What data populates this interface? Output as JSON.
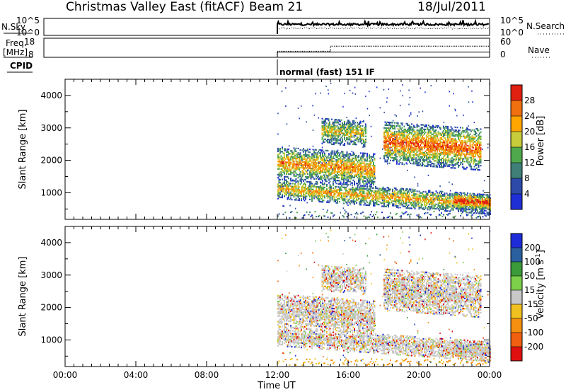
{
  "header": {
    "radar": "Christmas Valley East (fitACF)",
    "beam": "Beam 21",
    "date": "18/Jul/2011"
  },
  "chart_data": [
    {
      "type": "line",
      "panel": "noise",
      "left_label": "N.Sky",
      "right_label": "N.Search",
      "yticks_left": [
        "10^5",
        "10^0"
      ],
      "yticks_right": [
        "10^5",
        "10^0"
      ],
      "start_hour": 12.0,
      "end_hour": 24.0
    },
    {
      "type": "line",
      "panel": "frequency",
      "left_label": "Freq.",
      "left_unit": "[MHz]",
      "right_label": "Nave",
      "yticks_left": [
        "18",
        "8"
      ],
      "yticks_right": [
        "60",
        "0"
      ],
      "freq_steps": [
        {
          "from": 12.0,
          "to": 15.0,
          "value": 10
        },
        {
          "from": 15.0,
          "to": 24.0,
          "value": 10
        }
      ],
      "nave_steps": [
        {
          "from": 12.0,
          "to": 15.0,
          "value": 20
        },
        {
          "from": 15.0,
          "to": 24.0,
          "value": 40
        }
      ]
    },
    {
      "type": "text",
      "panel": "cpid",
      "label": "CPID",
      "mode_text": "normal (fast) 151 IF",
      "mode_start_hour": 12.0
    },
    {
      "type": "heatmap",
      "panel": "power",
      "ylabel": "Slant Range [km]",
      "ylim": [
        180,
        4500
      ],
      "yticks": [
        1000,
        2000,
        3000,
        4000
      ],
      "xlim": [
        0,
        24
      ],
      "colorbar": {
        "label": "Power [dB]",
        "ticks": [
          "4",
          "8",
          "12",
          "16",
          "20",
          "24",
          "28"
        ],
        "colors": [
          "#1f2fd6",
          "#2d4aa8",
          "#3f7f78",
          "#4fa84c",
          "#c8cc3a",
          "#ffa500",
          "#f07010",
          "#e02010"
        ]
      },
      "echo_bands": [
        {
          "t": [
            12.0,
            24.0
          ],
          "r": [
            800,
            1400
          ],
          "level": 0.55
        },
        {
          "t": [
            12.0,
            17.5
          ],
          "r": [
            1400,
            2400
          ],
          "level": 0.6
        },
        {
          "t": [
            14.5,
            17.0
          ],
          "r": [
            2500,
            3300
          ],
          "level": 0.45
        },
        {
          "t": [
            18.0,
            23.5
          ],
          "r": [
            1900,
            3200
          ],
          "level": 0.7
        },
        {
          "t": [
            22.0,
            24.0
          ],
          "r": [
            500,
            1000
          ],
          "level": 0.9
        }
      ]
    },
    {
      "type": "heatmap",
      "panel": "velocity",
      "ylabel": "Slant Range [km]",
      "ylim": [
        180,
        4500
      ],
      "yticks": [
        1000,
        2000,
        3000,
        4000
      ],
      "xlim": [
        0,
        24
      ],
      "xticks": [
        "00:00",
        "04:00",
        "08:00",
        "12:00",
        "16:00",
        "20:00",
        "00:00"
      ],
      "xlabel": "Time UT",
      "colorbar": {
        "label": "Velocity [m s",
        "label_sup": "-1",
        "label_end": "]",
        "ticks": [
          "200",
          "100",
          "50",
          "15",
          "-15",
          "-50",
          "-100",
          "-200"
        ],
        "colors": [
          "#1e2dd8",
          "#2a5fa0",
          "#3b9a3a",
          "#7cd04a",
          "#c8c8c8",
          "#f0c020",
          "#f59010",
          "#f06010",
          "#e01010"
        ]
      }
    }
  ]
}
